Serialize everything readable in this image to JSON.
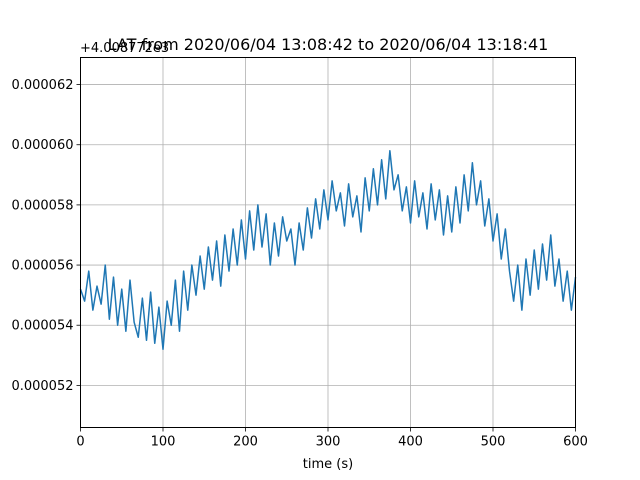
{
  "chart_data": {
    "type": "line",
    "title": "LAT from 2020/06/04 13:08:42 to 2020/06/04 13:18:41",
    "xlabel": "time (s)",
    "ylabel": "",
    "y_offset_label": "+4.008772e3",
    "xlim": [
      0,
      600
    ],
    "ylim": [
      5.06e-05,
      6.29e-05
    ],
    "x_ticks": [
      0,
      100,
      200,
      300,
      400,
      500,
      600
    ],
    "x_tick_labels": [
      "0",
      "100",
      "200",
      "300",
      "400",
      "500",
      "600"
    ],
    "y_ticks": [
      5.2e-05,
      5.4e-05,
      5.6e-05,
      5.8e-05,
      6e-05,
      6.2e-05
    ],
    "y_tick_labels": [
      "0.000052",
      "0.000054",
      "0.000056",
      "0.000058",
      "0.000060",
      "0.000062"
    ],
    "grid": true,
    "line_color": "#1f77b4",
    "series": [
      {
        "x": [
          0,
          5,
          10,
          15,
          20,
          25,
          30,
          35,
          40,
          45,
          50,
          55,
          60,
          65,
          70,
          75,
          80,
          85,
          90,
          95,
          100,
          105,
          110,
          115,
          120,
          125,
          130,
          135,
          140,
          145,
          150,
          155,
          160,
          165,
          170,
          175,
          180,
          185,
          190,
          195,
          200,
          205,
          210,
          215,
          220,
          225,
          230,
          235,
          240,
          245,
          250,
          255,
          260,
          265,
          270,
          275,
          280,
          285,
          290,
          295,
          300,
          305,
          310,
          315,
          320,
          325,
          330,
          335,
          340,
          345,
          350,
          355,
          360,
          365,
          370,
          375,
          380,
          385,
          390,
          395,
          400,
          405,
          410,
          415,
          420,
          425,
          430,
          435,
          440,
          445,
          450,
          455,
          460,
          465,
          470,
          475,
          480,
          485,
          490,
          495,
          500,
          505,
          510,
          515,
          520,
          525,
          530,
          535,
          540,
          545,
          550,
          555,
          560,
          565,
          570,
          575,
          580,
          585,
          590,
          595,
          600
        ],
        "y": [
          5.52e-05,
          5.48e-05,
          5.58e-05,
          5.45e-05,
          5.53e-05,
          5.47e-05,
          5.6e-05,
          5.42e-05,
          5.56e-05,
          5.4e-05,
          5.52e-05,
          5.38e-05,
          5.55e-05,
          5.41e-05,
          5.36e-05,
          5.49e-05,
          5.35e-05,
          5.51e-05,
          5.34e-05,
          5.46e-05,
          5.32e-05,
          5.48e-05,
          5.4e-05,
          5.55e-05,
          5.38e-05,
          5.58e-05,
          5.45e-05,
          5.6e-05,
          5.5e-05,
          5.63e-05,
          5.52e-05,
          5.66e-05,
          5.55e-05,
          5.68e-05,
          5.53e-05,
          5.7e-05,
          5.58e-05,
          5.72e-05,
          5.6e-05,
          5.75e-05,
          5.62e-05,
          5.78e-05,
          5.65e-05,
          5.8e-05,
          5.66e-05,
          5.77e-05,
          5.6e-05,
          5.74e-05,
          5.63e-05,
          5.76e-05,
          5.68e-05,
          5.72e-05,
          5.6e-05,
          5.74e-05,
          5.65e-05,
          5.79e-05,
          5.69e-05,
          5.82e-05,
          5.72e-05,
          5.85e-05,
          5.75e-05,
          5.88e-05,
          5.78e-05,
          5.84e-05,
          5.73e-05,
          5.87e-05,
          5.76e-05,
          5.83e-05,
          5.71e-05,
          5.89e-05,
          5.78e-05,
          5.92e-05,
          5.8e-05,
          5.95e-05,
          5.82e-05,
          5.98e-05,
          5.85e-05,
          5.9e-05,
          5.78e-05,
          5.86e-05,
          5.74e-05,
          5.88e-05,
          5.76e-05,
          5.84e-05,
          5.72e-05,
          5.87e-05,
          5.75e-05,
          5.85e-05,
          5.7e-05,
          5.83e-05,
          5.71e-05,
          5.86e-05,
          5.74e-05,
          5.9e-05,
          5.78e-05,
          5.94e-05,
          5.8e-05,
          5.88e-05,
          5.73e-05,
          5.82e-05,
          5.68e-05,
          5.77e-05,
          5.62e-05,
          5.72e-05,
          5.58e-05,
          5.48e-05,
          5.6e-05,
          5.45e-05,
          5.62e-05,
          5.5e-05,
          5.65e-05,
          5.52e-05,
          5.67e-05,
          5.55e-05,
          5.7e-05,
          5.53e-05,
          5.62e-05,
          5.48e-05,
          5.58e-05,
          5.45e-05,
          5.56e-05
        ]
      }
    ]
  }
}
